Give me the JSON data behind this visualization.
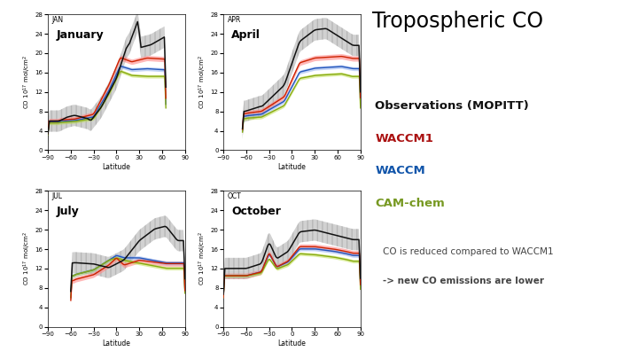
{
  "title": "Tropospheric CO",
  "legend_items": [
    {
      "label": "Observations (MOPITT)",
      "color": "#111111",
      "bold": true
    },
    {
      "label": "WACCM1",
      "color": "#AA1111",
      "bold": true
    },
    {
      "label": "WACCM",
      "color": "#1155AA",
      "bold": true
    },
    {
      "label": "CAM-chem",
      "color": "#779922",
      "bold": true
    }
  ],
  "note_line1": "CO is reduced compared to WACCM1",
  "note_line2": "-> new CO emissions are lower",
  "panels": [
    {
      "tag": "JAN",
      "label": "January",
      "xmin": -90,
      "xmax": 65
    },
    {
      "tag": "APR",
      "label": "April",
      "xmin": -65,
      "xmax": 90
    },
    {
      "tag": "JUL",
      "label": "July",
      "xmin": -60,
      "xmax": 90
    },
    {
      "tag": "OCT",
      "label": "October",
      "xmin": -90,
      "xmax": 90
    }
  ],
  "ylim": [
    0,
    28
  ],
  "yticks": [
    0,
    4,
    8,
    12,
    16,
    20,
    24,
    28
  ],
  "xticks": [
    -90,
    -60,
    -30,
    0,
    30,
    60,
    90
  ],
  "xlabel": "Latitude",
  "ylabel": "CO 10$^{17}$ mol/cm$^2$",
  "colors": {
    "obs": "#111111",
    "obs_fill": "#999999",
    "waccm1": "#CC2200",
    "waccm1_fill": "#FF8888",
    "waccm": "#2255BB",
    "waccm_fill": "#88AAEE",
    "camchem": "#88AA11",
    "camchem_fill": "#BBDD44",
    "orange": "#DD8800",
    "cyan": "#22AAAA",
    "purple": "#9922BB"
  }
}
